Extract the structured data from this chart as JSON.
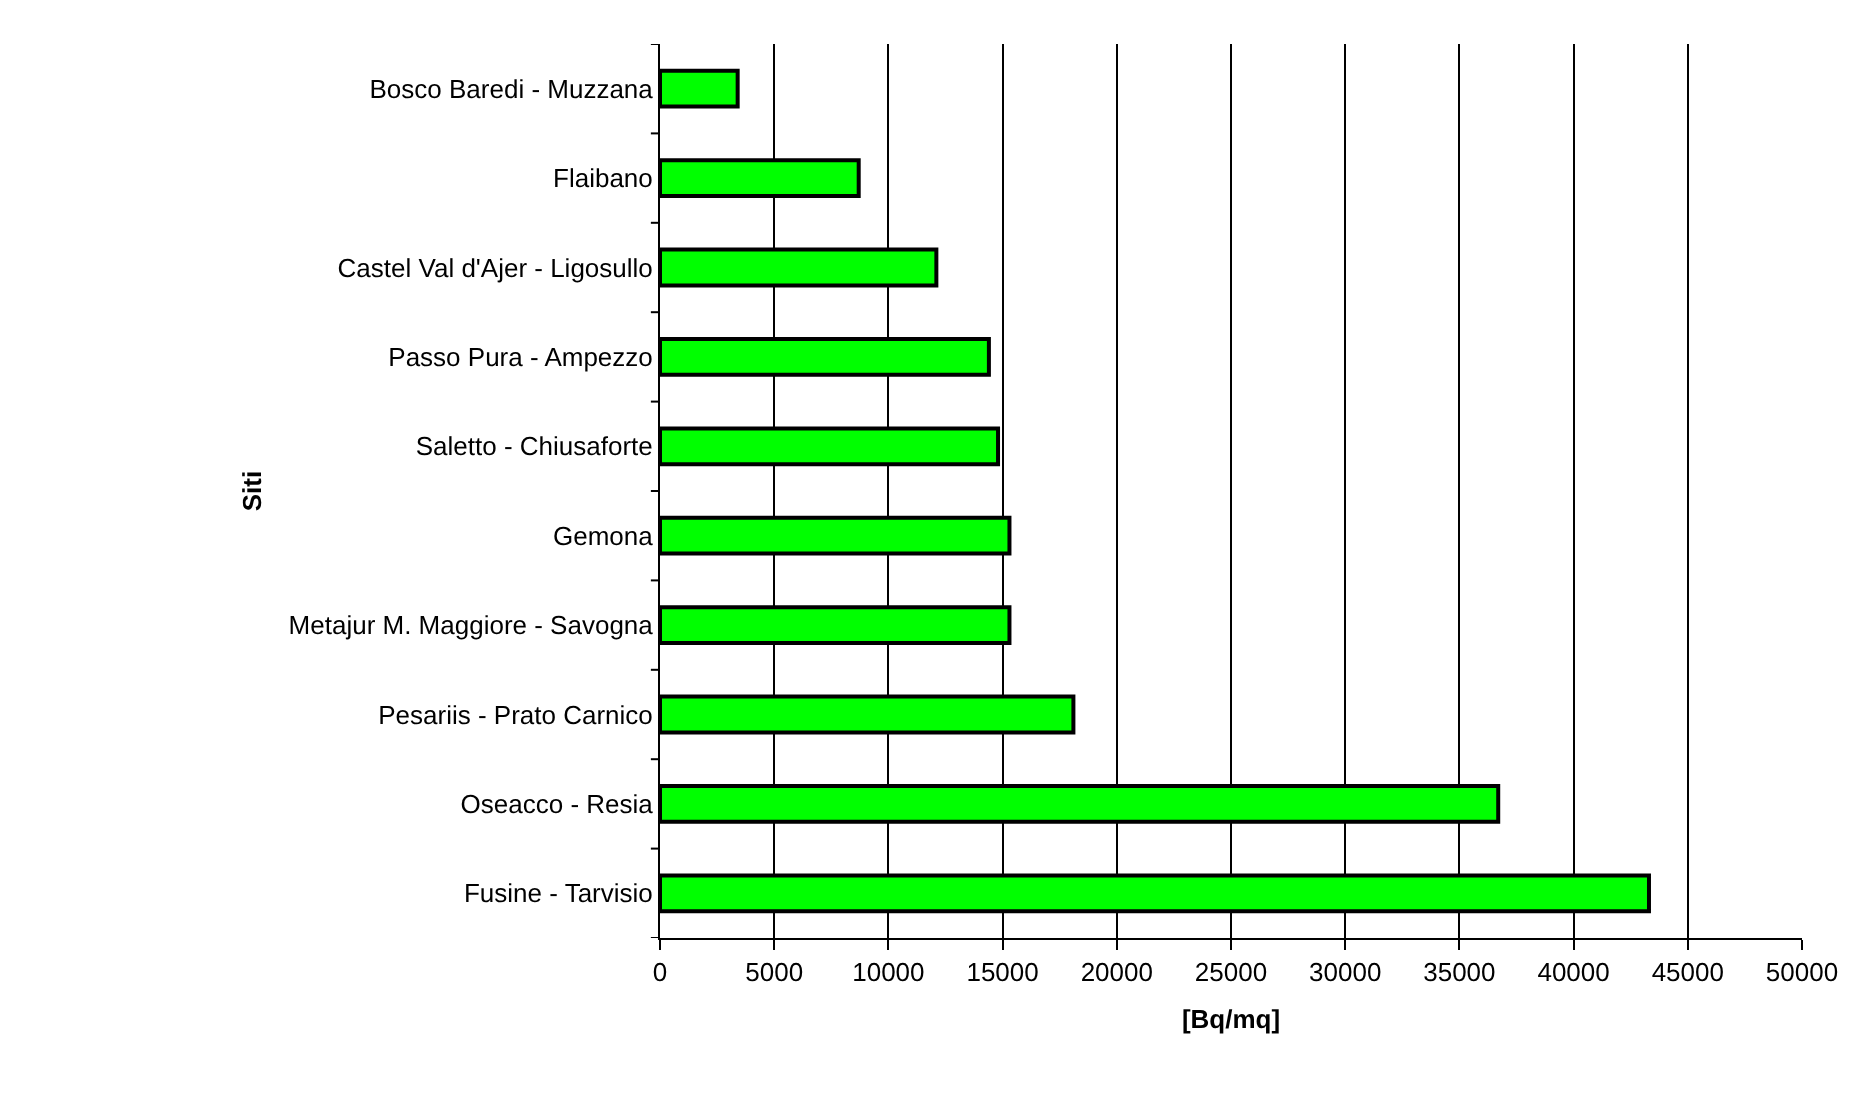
{
  "chart_data": {
    "type": "bar",
    "orientation": "horizontal",
    "xlabel": "[Bq/mq]",
    "ylabel": "Siti",
    "categories": [
      "Bosco Baredi - Muzzana",
      "Flaibano",
      "Castel Val d'Ajer - Ligosullo",
      "Passo Pura - Ampezzo",
      "Saletto - Chiusaforte",
      "Gemona",
      "Metajur M. Maggiore - Savogna",
      "Pesariis - Prato Carnico",
      "Oseacco - Resia",
      "Fusine - Tarvisio"
    ],
    "values": [
      3400,
      8700,
      12100,
      14400,
      14800,
      15300,
      15300,
      18100,
      36700,
      43300
    ],
    "color": "#00ff00",
    "xlim": [
      0,
      50000
    ],
    "xticks": [
      0,
      5000,
      10000,
      15000,
      20000,
      25000,
      30000,
      35000,
      40000,
      45000,
      50000
    ],
    "grid": "x"
  }
}
